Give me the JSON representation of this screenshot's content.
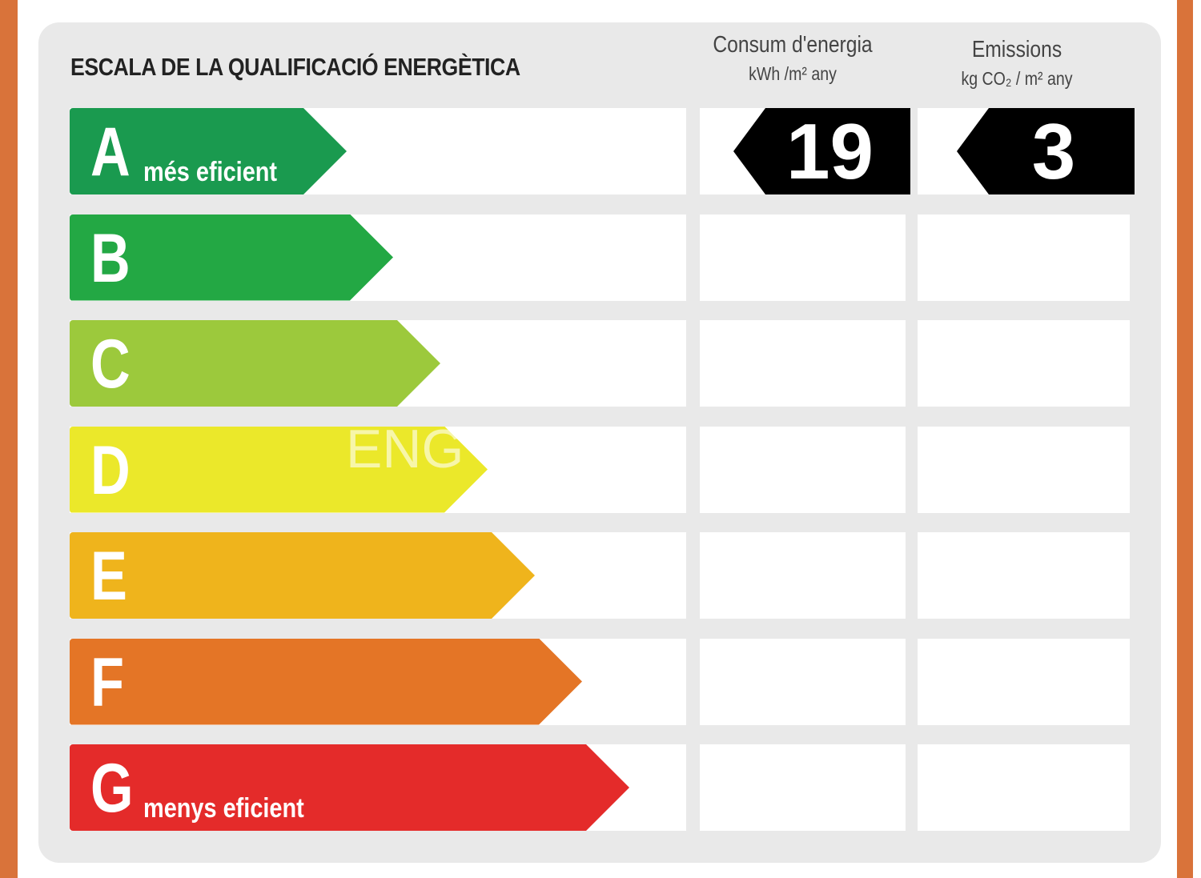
{
  "title": "ESCALA DE LA QUALIFICACIÓ ENERGÈTICA",
  "columns": {
    "energy": {
      "label": "Consum d'energia",
      "unit": "kWh /m² any"
    },
    "emissions": {
      "label": "Emissions",
      "unit": "kg CO₂ / m² any"
    }
  },
  "ratings": [
    {
      "letter": "A",
      "sub": "més eficient",
      "color": "#1a9a4f"
    },
    {
      "letter": "B",
      "sub": "",
      "color": "#23a844"
    },
    {
      "letter": "C",
      "sub": "",
      "color": "#9cc93c"
    },
    {
      "letter": "D",
      "sub": "",
      "color": "#ebe82a"
    },
    {
      "letter": "E",
      "sub": "",
      "color": "#efb41c"
    },
    {
      "letter": "F",
      "sub": "",
      "color": "#e47526"
    },
    {
      "letter": "G",
      "sub": "menys eficient",
      "color": "#e42b2a"
    }
  ],
  "result": {
    "rating": "A",
    "energy_value": "19",
    "emissions_value": "3"
  },
  "watermark": "ENG"
}
